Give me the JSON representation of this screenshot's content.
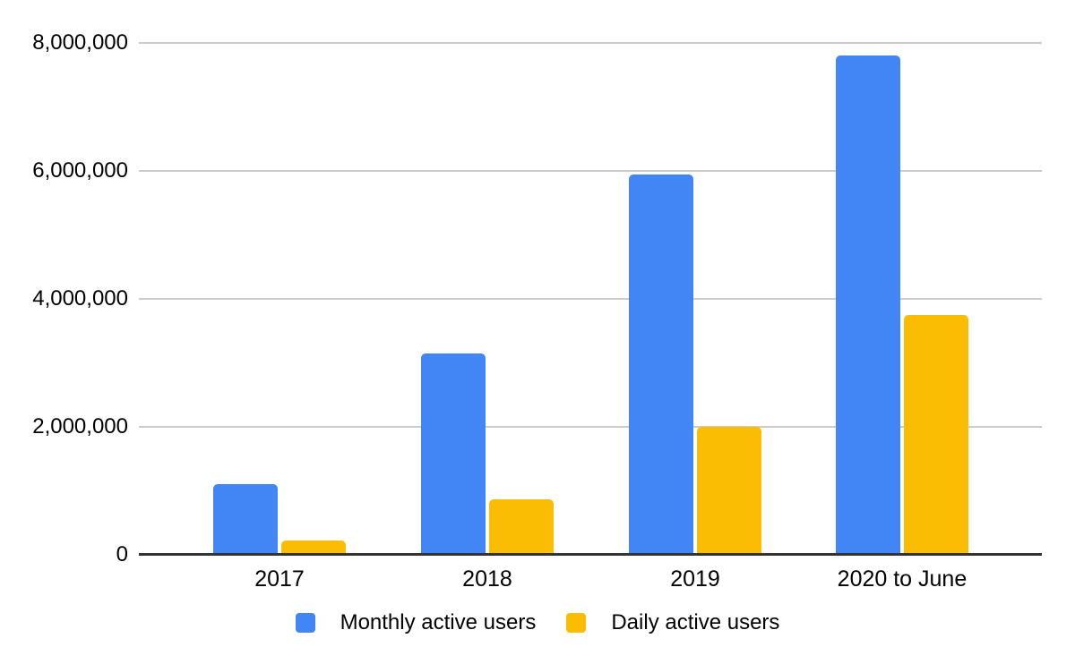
{
  "chart_data": {
    "type": "bar",
    "title": "",
    "xlabel": "",
    "ylabel": "",
    "categories": [
      "2017",
      "2018",
      "2019",
      "2020 to June"
    ],
    "series": [
      {
        "name": "Monthly active users",
        "color": "#4285f4",
        "values": [
          1100000,
          3150000,
          5950000,
          7800000
        ]
      },
      {
        "name": "Daily active users",
        "color": "#fbbc04",
        "values": [
          220000,
          870000,
          2000000,
          3750000
        ]
      }
    ],
    "ylim": [
      0,
      8000000
    ],
    "yticks": [
      {
        "value": 0,
        "label": "0"
      },
      {
        "value": 2000000,
        "label": "2,000,000"
      },
      {
        "value": 4000000,
        "label": "4,000,000"
      },
      {
        "value": 6000000,
        "label": "6,000,000"
      },
      {
        "value": 8000000,
        "label": "8,000,000"
      }
    ],
    "grid": true,
    "legend_position": "bottom"
  },
  "colors": {
    "background": "#ffffff",
    "gridline": "#cccccc",
    "axis_line": "#333333",
    "text": "#000000"
  }
}
